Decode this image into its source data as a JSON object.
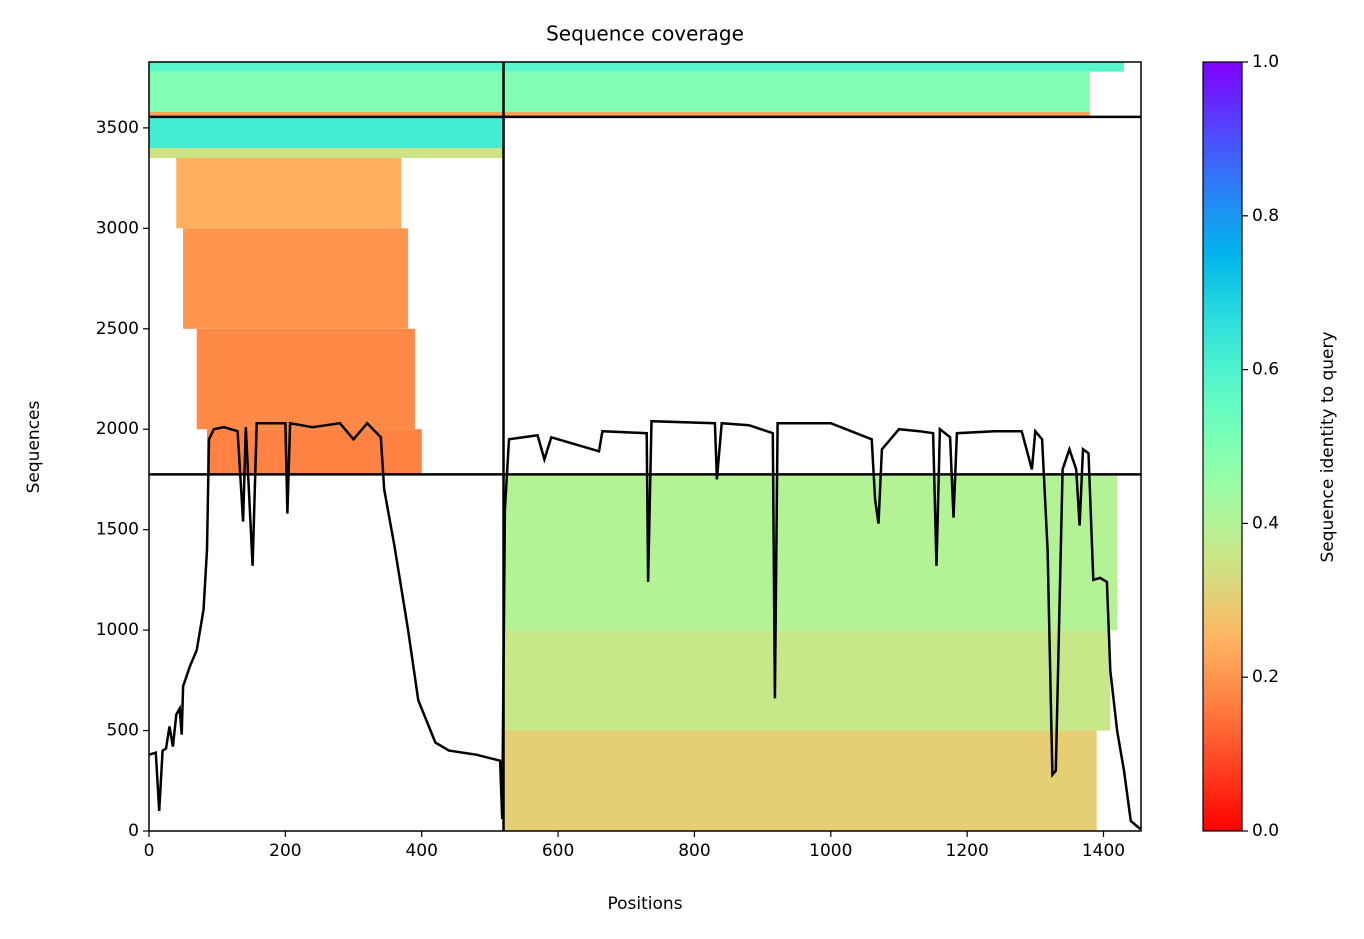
{
  "chart_data": {
    "type": "coverage",
    "title": "Sequence coverage",
    "xlabel": "Positions",
    "ylabel": "Sequences",
    "colorbar_label": "Sequence identity to query",
    "xlim": [
      0,
      1455
    ],
    "ylim": [
      0,
      3828
    ],
    "xticks": [
      0,
      200,
      400,
      600,
      800,
      1000,
      1200,
      1400
    ],
    "yticks": [
      0,
      500,
      1000,
      1500,
      2000,
      2500,
      3000,
      3500
    ],
    "clim": [
      0,
      1
    ],
    "cticks": [
      {
        "value": 0,
        "label": "0.0"
      },
      {
        "value": 0.2,
        "label": "0.2"
      },
      {
        "value": 0.4,
        "label": "0.4"
      },
      {
        "value": 0.6,
        "label": "0.6"
      },
      {
        "value": 0.8,
        "label": "0.8"
      },
      {
        "value": 1,
        "label": "1.0"
      }
    ],
    "colormap": "rainbow_r",
    "blocks": [
      {
        "x": [
          85,
          400
        ],
        "y": [
          1775,
          2000
        ],
        "identity": 0.17
      },
      {
        "x": [
          70,
          390
        ],
        "y": [
          2000,
          2500
        ],
        "identity": 0.18
      },
      {
        "x": [
          50,
          380
        ],
        "y": [
          2500,
          3000
        ],
        "identity": 0.2
      },
      {
        "x": [
          40,
          370
        ],
        "y": [
          3000,
          3350
        ],
        "identity": 0.24
      },
      {
        "x": [
          0,
          520
        ],
        "y": [
          3350,
          3400
        ],
        "identity": 0.35
      },
      {
        "x": [
          0,
          520
        ],
        "y": [
          3400,
          3555
        ],
        "identity": 0.62
      },
      {
        "x": [
          0,
          1380
        ],
        "y": [
          3555,
          3580
        ],
        "identity": 0.22
      },
      {
        "x": [
          0,
          1380
        ],
        "y": [
          3580,
          3780
        ],
        "identity": 0.5
      },
      {
        "x": [
          0,
          1430
        ],
        "y": [
          3780,
          3828
        ],
        "identity": 0.58
      },
      {
        "x": [
          520,
          1390
        ],
        "y": [
          0,
          500
        ],
        "identity": 0.3
      },
      {
        "x": [
          520,
          1410
        ],
        "y": [
          500,
          1000
        ],
        "identity": 0.36
      },
      {
        "x": [
          520,
          1420
        ],
        "y": [
          1000,
          1775
        ],
        "identity": 0.4
      }
    ],
    "x_dividers": [
      520
    ],
    "y_dividers": [
      1775,
      3555
    ],
    "coverage": {
      "color": "#000000",
      "x": [
        0,
        10,
        15,
        20,
        25,
        30,
        35,
        40,
        45,
        48,
        50,
        60,
        70,
        80,
        85,
        88,
        95,
        110,
        130,
        138,
        142,
        152,
        158,
        200,
        203,
        207,
        240,
        280,
        300,
        320,
        340,
        345,
        360,
        380,
        395,
        420,
        440,
        480,
        515,
        518,
        522,
        528,
        570,
        580,
        590,
        660,
        665,
        730,
        732,
        737,
        830,
        833,
        840,
        880,
        915,
        918,
        922,
        1000,
        1060,
        1065,
        1070,
        1075,
        1100,
        1130,
        1150,
        1155,
        1160,
        1175,
        1180,
        1185,
        1240,
        1280,
        1295,
        1300,
        1310,
        1318,
        1325,
        1330,
        1340,
        1350,
        1360,
        1365,
        1370,
        1378,
        1385,
        1395,
        1405,
        1410,
        1420,
        1430,
        1440,
        1454
      ],
      "values": [
        380,
        390,
        100,
        400,
        410,
        520,
        420,
        580,
        610,
        480,
        720,
        820,
        900,
        1100,
        1400,
        1950,
        2000,
        2010,
        1990,
        1540,
        2010,
        1320,
        2030,
        2030,
        1580,
        2030,
        2010,
        2030,
        1950,
        2030,
        1960,
        1700,
        1420,
        1000,
        650,
        440,
        400,
        380,
        350,
        60,
        1600,
        1950,
        1970,
        1850,
        1960,
        1890,
        1990,
        1980,
        1240,
        2040,
        2030,
        1750,
        2030,
        2020,
        1980,
        660,
        2030,
        2030,
        1950,
        1650,
        1530,
        1900,
        2000,
        1990,
        1980,
        1320,
        2000,
        1960,
        1560,
        1980,
        1990,
        1990,
        1800,
        1990,
        1950,
        1400,
        280,
        300,
        1800,
        1900,
        1800,
        1520,
        1900,
        1880,
        1250,
        1260,
        1240,
        800,
        500,
        300,
        50,
        10
      ]
    }
  }
}
